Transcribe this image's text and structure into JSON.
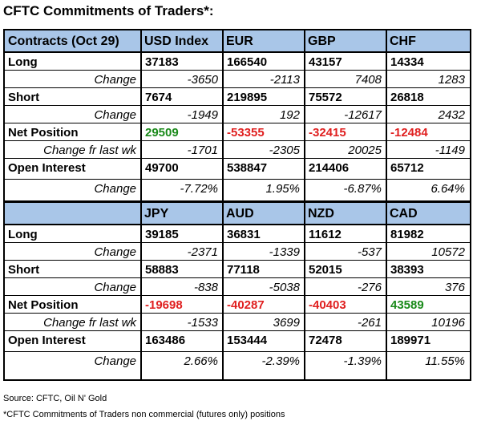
{
  "title": "CFTC Commitments of Traders*:",
  "table1": {
    "headers": [
      "Contracts (Oct 29)",
      "USD Index",
      "EUR",
      "GBP",
      "CHF"
    ],
    "rows": [
      {
        "label": "Long",
        "values": [
          "37183",
          "166540",
          "43157",
          "14334"
        ]
      },
      {
        "label": "Change",
        "values": [
          "-3650",
          "-2113",
          "7408",
          "1283"
        ]
      },
      {
        "label": "Short",
        "values": [
          "7674",
          "219895",
          "75572",
          "26818"
        ]
      },
      {
        "label": "Change",
        "values": [
          "-1949",
          "192",
          "-12617",
          "2432"
        ]
      },
      {
        "label": "Net Position",
        "values": [
          "29509",
          "-53355",
          "-32415",
          "-12484"
        ]
      },
      {
        "label": "Change fr last wk",
        "values": [
          "-1701",
          "-2305",
          "20025",
          "-1149"
        ]
      },
      {
        "label": "Open Interest",
        "values": [
          "49700",
          "538847",
          "214406",
          "65712"
        ]
      },
      {
        "label": "Change",
        "values": [
          "-7.72%",
          "1.95%",
          "-6.87%",
          "6.64%"
        ]
      }
    ]
  },
  "table2": {
    "headers": [
      "",
      "JPY",
      "AUD",
      "NZD",
      "CAD"
    ],
    "rows": [
      {
        "label": "Long",
        "values": [
          "39185",
          "36831",
          "11612",
          "81982"
        ]
      },
      {
        "label": "Change",
        "values": [
          "-2371",
          "-1339",
          "-537",
          "10572"
        ]
      },
      {
        "label": "Short",
        "values": [
          "58883",
          "77118",
          "52015",
          "38393"
        ]
      },
      {
        "label": "Change",
        "values": [
          "-838",
          "-5038",
          "-276",
          "376"
        ]
      },
      {
        "label": "Net Position",
        "values": [
          "-19698",
          "-40287",
          "-40403",
          "43589"
        ]
      },
      {
        "label": "Change fr last wk",
        "values": [
          "-1533",
          "3699",
          "-261",
          "10196"
        ]
      },
      {
        "label": "Open Interest",
        "values": [
          "163486",
          "153444",
          "72478",
          "189971"
        ]
      },
      {
        "label": "Change",
        "values": [
          "2.66%",
          "-2.39%",
          "-1.39%",
          "11.55%"
        ]
      }
    ]
  },
  "footer": {
    "source": "Source: CFTC, Oil N' Gold",
    "note": "*CFTC Commitments of Traders non commercial (futures only) positions"
  },
  "colors": {
    "header_bg": "#a9c6e8",
    "positive_net": "#1a8a1a",
    "negative_net": "#e02020"
  }
}
